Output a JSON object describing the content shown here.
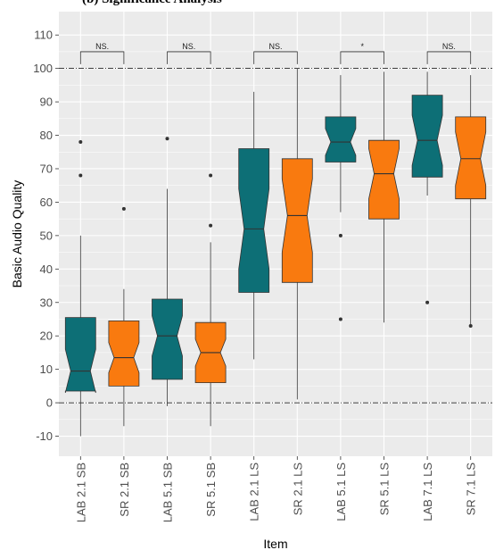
{
  "caption": "(b) Significance Analysis",
  "chart_data": {
    "type": "notched-boxplot",
    "xlabel": "Item",
    "ylabel": "Basic Audio Quality",
    "ylim": [
      -16,
      117
    ],
    "yticks": [
      -10,
      0,
      10,
      20,
      30,
      40,
      50,
      60,
      70,
      80,
      90,
      100,
      110
    ],
    "reference_lines": [
      0,
      100
    ],
    "grid": true,
    "colors": {
      "LAB": "#0d6f76",
      "SR": "#f97a0f",
      "panel": "#ebebeb",
      "grid": "#ffffff"
    },
    "categories": [
      "LAB 2.1 SB",
      "SR 2.1 SB",
      "LAB 5.1 SB",
      "SR 5.1 SB",
      "LAB 2.1 LS",
      "SR 2.1 LS",
      "LAB 5.1 LS",
      "SR 5.1 LS",
      "LAB 7.1 LS",
      "SR 7.1 LS"
    ],
    "boxes": [
      {
        "label": "LAB 2.1 SB",
        "group": "LAB",
        "whisker_low": -10,
        "q1": 3.5,
        "median": 9.5,
        "q3": 25.5,
        "whisker_high": 50,
        "notch": [
          3,
          16
        ],
        "outliers": [
          68,
          78
        ]
      },
      {
        "label": "SR 2.1 SB",
        "group": "SR",
        "whisker_low": -7,
        "q1": 5,
        "median": 13.5,
        "q3": 24.5,
        "whisker_high": 34,
        "notch": [
          9,
          18
        ],
        "outliers": [
          58
        ]
      },
      {
        "label": "LAB 5.1 SB",
        "group": "LAB",
        "whisker_low": -1,
        "q1": 7,
        "median": 20,
        "q3": 31,
        "whisker_high": 64,
        "notch": [
          14,
          26
        ],
        "outliers": [
          79
        ]
      },
      {
        "label": "SR 5.1 SB",
        "group": "SR",
        "whisker_low": -7,
        "q1": 6,
        "median": 15,
        "q3": 24,
        "whisker_high": 48,
        "notch": [
          11,
          19
        ],
        "outliers": [
          53,
          68
        ]
      },
      {
        "label": "LAB 2.1 LS",
        "group": "LAB",
        "whisker_low": 13,
        "q1": 33,
        "median": 52,
        "q3": 76,
        "whisker_high": 93,
        "notch": [
          40,
          64
        ],
        "outliers": []
      },
      {
        "label": "SR 2.1 LS",
        "group": "SR",
        "whisker_low": 1,
        "q1": 36,
        "median": 56,
        "q3": 73,
        "whisker_high": 100,
        "notch": [
          45,
          67
        ],
        "outliers": []
      },
      {
        "label": "LAB 5.1 LS",
        "group": "LAB",
        "whisker_low": 57,
        "q1": 72,
        "median": 78,
        "q3": 85.5,
        "whisker_high": 98,
        "notch": [
          74,
          82
        ],
        "outliers": [
          25,
          50
        ]
      },
      {
        "label": "SR 5.1 LS",
        "group": "SR",
        "whisker_low": 24,
        "q1": 55,
        "median": 68.5,
        "q3": 78.5,
        "whisker_high": 99,
        "notch": [
          61,
          76
        ],
        "outliers": []
      },
      {
        "label": "LAB 7.1 LS",
        "group": "LAB",
        "whisker_low": 62,
        "q1": 67.5,
        "median": 78.5,
        "q3": 92,
        "whisker_high": 99,
        "notch": [
          71,
          86
        ],
        "outliers": [
          30
        ]
      },
      {
        "label": "SR 7.1 LS",
        "group": "SR",
        "whisker_low": 23.5,
        "q1": 61,
        "median": 73,
        "q3": 85.5,
        "whisker_high": 98,
        "notch": [
          65,
          81
        ],
        "outliers": [
          23
        ]
      }
    ],
    "significance": [
      {
        "pair": [
          0,
          1
        ],
        "label": "NS.",
        "y": 105
      },
      {
        "pair": [
          2,
          3
        ],
        "label": "NS.",
        "y": 105
      },
      {
        "pair": [
          4,
          5
        ],
        "label": "NS.",
        "y": 105
      },
      {
        "pair": [
          6,
          7
        ],
        "label": "*",
        "y": 105
      },
      {
        "pair": [
          8,
          9
        ],
        "label": "NS.",
        "y": 105
      }
    ]
  }
}
